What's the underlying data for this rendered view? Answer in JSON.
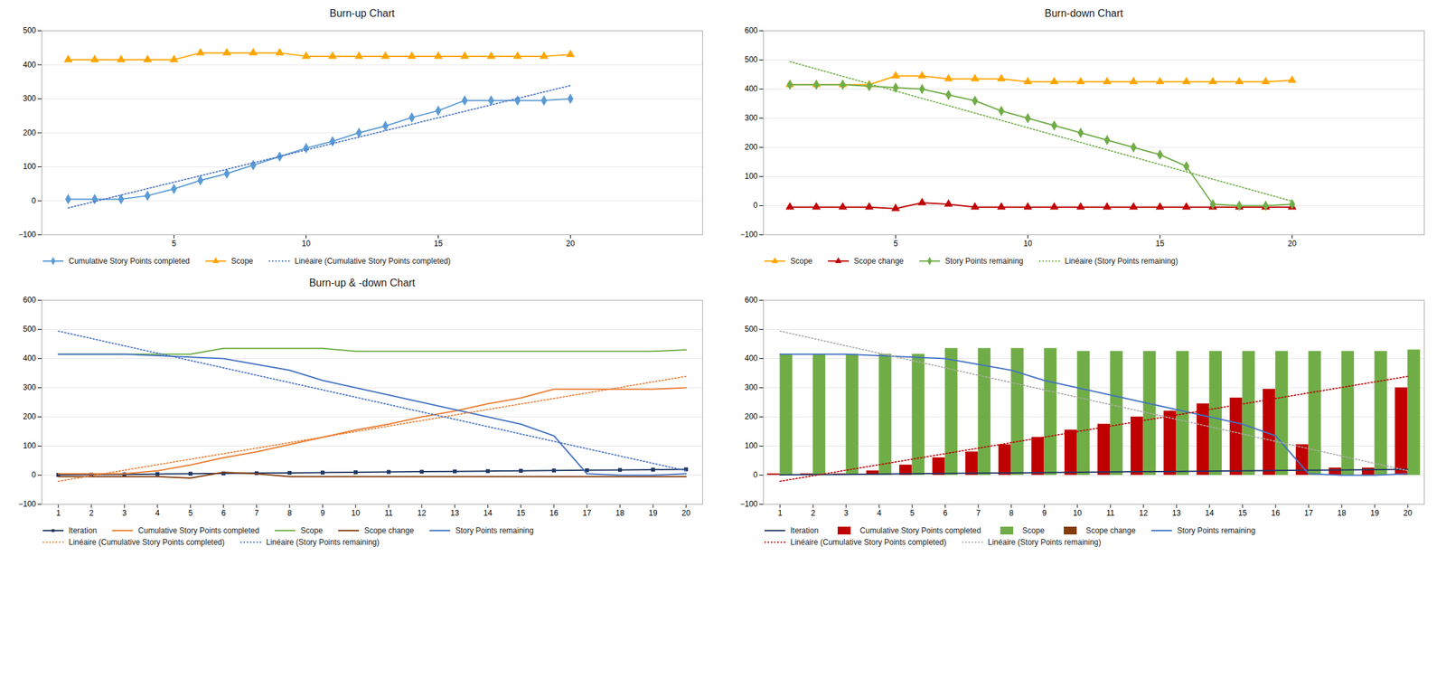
{
  "chart_data": [
    {
      "type": "line",
      "title": "Burn-up Chart",
      "x": [
        1,
        2,
        3,
        4,
        5,
        6,
        7,
        8,
        9,
        10,
        11,
        12,
        13,
        14,
        15,
        16,
        17,
        18,
        19,
        20
      ],
      "xlim": [
        0,
        25
      ],
      "xticks": [
        5,
        10,
        15,
        20
      ],
      "ylim": [
        -100,
        500
      ],
      "yticks": [
        -100,
        0,
        100,
        200,
        300,
        400,
        500
      ],
      "grid": true,
      "legend": "bottom",
      "series": [
        {
          "name": "Cumulative Story Points completed",
          "color": "#5B9BD5",
          "marker": "diamond",
          "values": [
            5,
            5,
            5,
            15,
            35,
            60,
            80,
            105,
            130,
            155,
            175,
            200,
            220,
            245,
            265,
            295,
            295,
            295,
            295,
            300
          ]
        },
        {
          "name": "Scope",
          "color": "#FFA500",
          "marker": "triangle",
          "values": [
            415,
            415,
            415,
            415,
            415,
            435,
            435,
            435,
            435,
            425,
            425,
            425,
            425,
            425,
            425,
            425,
            425,
            425,
            425,
            430
          ]
        },
        {
          "name": "Linéaire (Cumulative Story Points completed)",
          "color": "#4472C4",
          "line_style": "dotted",
          "x": [
            1,
            20
          ],
          "values": [
            -20.9285714,
            338.9285714
          ]
        }
      ]
    },
    {
      "type": "line",
      "title": "Burn-down Chart",
      "x": [
        1,
        2,
        3,
        4,
        5,
        6,
        7,
        8,
        9,
        10,
        11,
        12,
        13,
        14,
        15,
        16,
        17,
        18,
        19,
        20
      ],
      "xlim": [
        0,
        25
      ],
      "xticks": [
        5,
        10,
        15,
        20
      ],
      "ylim": [
        -100,
        600
      ],
      "yticks": [
        -100,
        0,
        100,
        200,
        300,
        400,
        500,
        600
      ],
      "grid": true,
      "legend": "bottom",
      "series": [
        {
          "name": "Scope",
          "color": "#FFA500",
          "marker": "triangle",
          "values": [
            415,
            415,
            415,
            415,
            445,
            445,
            435,
            435,
            435,
            425,
            425,
            425,
            425,
            425,
            425,
            425,
            425,
            425,
            425,
            430
          ]
        },
        {
          "name": "Scope change",
          "color": "#C00000",
          "marker": "triangle",
          "values": [
            -5,
            -5,
            -5,
            -5,
            -10,
            10,
            5,
            -5,
            -5,
            -5,
            -5,
            -5,
            -5,
            -5,
            -5,
            -5,
            -5,
            -5,
            -5,
            -5
          ]
        },
        {
          "name": "Story Points remaining",
          "color": "#70AD47",
          "marker": "diamond",
          "values": [
            415,
            415,
            415,
            410,
            405,
            400,
            380,
            360,
            325,
            300,
            275,
            250,
            225,
            200,
            175,
            135,
            5,
            0,
            0,
            5
          ]
        },
        {
          "name": "Linéaire (Story Points remaining)",
          "color": "#70AD47",
          "line_style": "dotted",
          "x": [
            1,
            20
          ],
          "values": [
            494.1428571,
            15.3571429
          ]
        }
      ]
    },
    {
      "type": "line",
      "title": "Burn-up & -down Chart",
      "x": [
        1,
        2,
        3,
        4,
        5,
        6,
        7,
        8,
        9,
        10,
        11,
        12,
        13,
        14,
        15,
        16,
        17,
        18,
        19,
        20
      ],
      "xlim": [
        0.5,
        20.5
      ],
      "xticks": [
        1,
        2,
        3,
        4,
        5,
        6,
        7,
        8,
        9,
        10,
        11,
        12,
        13,
        14,
        15,
        16,
        17,
        18,
        19,
        20
      ],
      "ylim": [
        -100,
        600
      ],
      "yticks": [
        -100,
        0,
        100,
        200,
        300,
        400,
        500,
        600
      ],
      "grid": true,
      "legend": "bottom",
      "series": [
        {
          "name": "Iteration",
          "color": "#203864",
          "marker": "square",
          "values": [
            1,
            2,
            3,
            4,
            5,
            6,
            7,
            8,
            9,
            10,
            11,
            12,
            13,
            14,
            15,
            16,
            17,
            18,
            19,
            20
          ]
        },
        {
          "name": "Cumulative Story Points completed",
          "color": "#ED7D31",
          "values": [
            5,
            5,
            5,
            15,
            35,
            60,
            80,
            105,
            130,
            155,
            175,
            200,
            220,
            245,
            265,
            295,
            295,
            295,
            295,
            300
          ]
        },
        {
          "name": "Scope",
          "color": "#70AD47",
          "values": [
            415,
            415,
            415,
            415,
            415,
            435,
            435,
            435,
            435,
            425,
            425,
            425,
            425,
            425,
            425,
            425,
            425,
            425,
            425,
            430
          ]
        },
        {
          "name": "Scope change",
          "color": "#843C0C",
          "values": [
            -5,
            -5,
            -5,
            -5,
            -10,
            10,
            5,
            -5,
            -5,
            -5,
            -5,
            -5,
            -5,
            -5,
            -5,
            -5,
            -5,
            -5,
            -5,
            -5
          ]
        },
        {
          "name": "Story Points remaining",
          "color": "#4472C4",
          "values": [
            415,
            415,
            415,
            410,
            405,
            400,
            380,
            360,
            325,
            300,
            275,
            250,
            225,
            200,
            175,
            135,
            5,
            0,
            0,
            5
          ]
        },
        {
          "name": "Linéaire (Cumulative Story Points completed)",
          "color": "#ED7D31",
          "line_style": "dotted",
          "x": [
            1,
            20
          ],
          "values": [
            -20.9285714,
            338.9285714
          ]
        },
        {
          "name": "Linéaire (Story Points remaining)",
          "color": "#4472C4",
          "line_style": "dotted",
          "x": [
            1,
            20
          ],
          "values": [
            494.1428571,
            15.3571429
          ]
        }
      ]
    },
    {
      "type": "bar",
      "x": [
        1,
        2,
        3,
        4,
        5,
        6,
        7,
        8,
        9,
        10,
        11,
        12,
        13,
        14,
        15,
        16,
        17,
        18,
        19,
        20
      ],
      "xlim": [
        0.5,
        20.5
      ],
      "xticks": [
        1,
        2,
        3,
        4,
        5,
        6,
        7,
        8,
        9,
        10,
        11,
        12,
        13,
        14,
        15,
        16,
        17,
        18,
        19,
        20
      ],
      "ylim": [
        -100,
        600
      ],
      "yticks": [
        -100,
        0,
        100,
        200,
        300,
        400,
        500,
        600
      ],
      "grid": true,
      "legend": "bottom",
      "series": [
        {
          "name": "Iteration",
          "type": "line",
          "color": "#203864",
          "values": [
            1,
            2,
            3,
            4,
            5,
            6,
            7,
            8,
            9,
            10,
            11,
            12,
            13,
            14,
            15,
            16,
            17,
            18,
            19,
            20
          ]
        },
        {
          "name": "Cumulative Story Points completed",
          "type": "bar",
          "color": "#C00000",
          "values": [
            5,
            5,
            5,
            15,
            35,
            60,
            80,
            105,
            130,
            155,
            175,
            200,
            220,
            245,
            265,
            295,
            105,
            25,
            25,
            300
          ]
        },
        {
          "name": "Scope",
          "type": "bar",
          "color": "#70AD47",
          "values": [
            415,
            415,
            415,
            415,
            415,
            435,
            435,
            435,
            435,
            425,
            425,
            425,
            425,
            425,
            425,
            425,
            425,
            425,
            425,
            430
          ]
        },
        {
          "name": "Scope change",
          "type": "bar",
          "color": "#843C0C",
          "values": [
            null,
            null,
            null,
            null,
            null,
            null,
            null,
            null,
            null,
            null,
            null,
            null,
            null,
            null,
            null,
            null,
            null,
            null,
            null,
            null
          ]
        },
        {
          "name": "Story Points remaining",
          "type": "line",
          "color": "#4472C4",
          "values": [
            415,
            415,
            415,
            410,
            405,
            400,
            380,
            360,
            325,
            300,
            275,
            250,
            225,
            200,
            175,
            135,
            5,
            0,
            0,
            5
          ]
        },
        {
          "name": "Linéaire (Cumulative Story Points completed)",
          "type": "line",
          "color": "#C00000",
          "line_style": "dotted",
          "x": [
            1,
            20
          ],
          "values": [
            -20.9285714,
            338.9285714
          ]
        },
        {
          "name": "Linéaire (Story Points remaining)",
          "type": "line",
          "color": "#aaaaaa",
          "line_style": "dotted",
          "x": [
            1,
            20
          ],
          "values": [
            494.1428571,
            15.3571429
          ]
        }
      ]
    }
  ]
}
